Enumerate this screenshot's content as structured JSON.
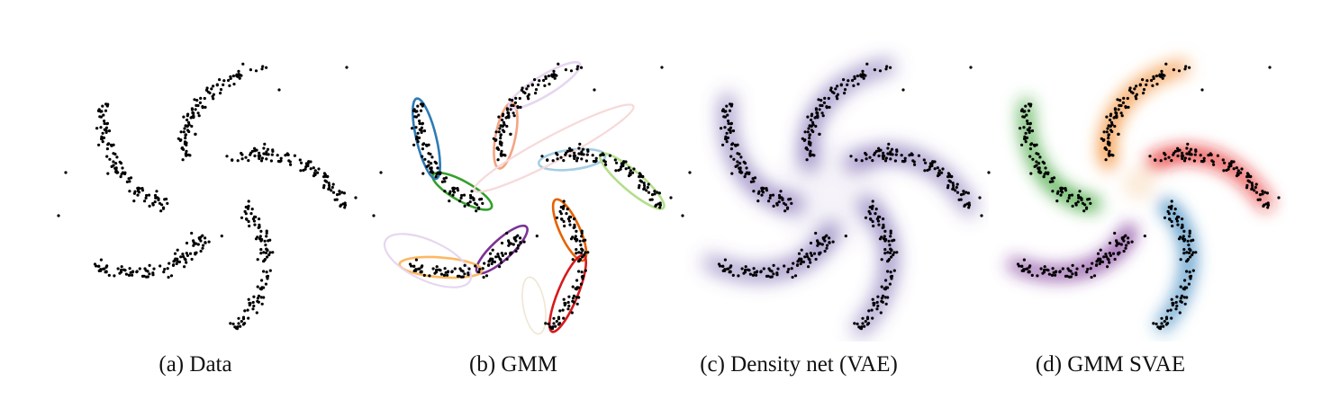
{
  "figure": {
    "panels": [
      {
        "id": "a",
        "caption": "(a) Data",
        "kind": "data"
      },
      {
        "id": "b",
        "caption": "(b) GMM",
        "kind": "gmm"
      },
      {
        "id": "c",
        "caption": "(c) Density net (VAE)",
        "kind": "density"
      },
      {
        "id": "d",
        "caption": "(d) GMM SVAE",
        "kind": "svae"
      }
    ],
    "data_color": "#000000",
    "gmm_component_colors": [
      "#a6cee3",
      "#b2df8a",
      "#e66101",
      "#d7191c",
      "#7b3294",
      "#fdb863",
      "#33a02c",
      "#2c7bb6",
      "#f4a582",
      "#e6d6f0",
      "#f7d9d9",
      "#f0e6d2"
    ],
    "density_color": "#6a51a3",
    "svae_colors": [
      "#e41a1c",
      "#3182bd",
      "#7b3294",
      "#33a02c",
      "#f2801e",
      "#f5c48a"
    ]
  }
}
